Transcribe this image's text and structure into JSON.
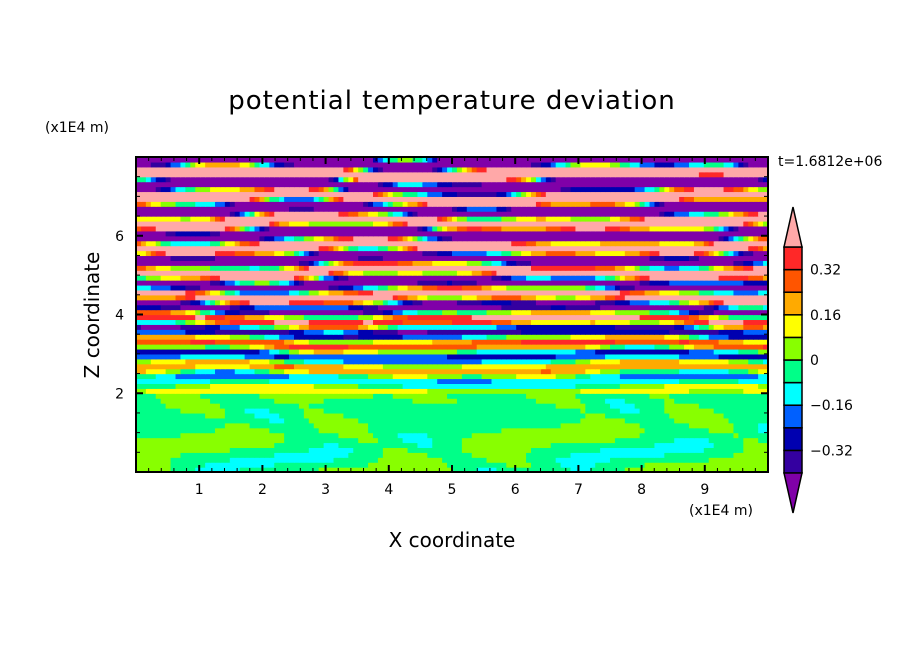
{
  "chart_data": {
    "type": "heatmap",
    "subtype": "filled-contour",
    "title": "potential temperature deviation",
    "xlabel": "X coordinate",
    "ylabel": "Z coordinate",
    "x_unit": "(x1E4 m)",
    "y_unit": "(x1E4 m)",
    "annotation": "t=1.6812e+06",
    "xlim": [
      0,
      10
    ],
    "ylim": [
      0,
      8
    ],
    "x_ticks": [
      "1",
      "2",
      "3",
      "4",
      "5",
      "6",
      "7",
      "8",
      "9"
    ],
    "y_ticks": [
      "2",
      "4",
      "6"
    ],
    "colorbar": {
      "levels": [
        -0.4,
        -0.32,
        -0.24,
        -0.16,
        -0.08,
        0,
        0.08,
        0.16,
        0.24,
        0.32,
        0.4
      ],
      "tick_labels": [
        "0.32",
        "0.16",
        "0",
        "−0.16",
        "−0.32"
      ],
      "tick_values": [
        0.32,
        0.16,
        0,
        -0.16,
        -0.32
      ],
      "extend": "both",
      "colors_low_to_high": [
        "#8000a8",
        "#3400a0",
        "#0000b0",
        "#0060ff",
        "#00ffff",
        "#00ff88",
        "#88ff00",
        "#ffff00",
        "#ffaa00",
        "#ff5500",
        "#ff2828",
        "#ffa8a8"
      ]
    },
    "description_of_field": {
      "below_z_2": "values near 0 (green / yellow-green)",
      "above_z_2": "horizontal layered bands, amplitude growing with height, alternating > 0.40 and < -0.40 near top"
    }
  }
}
